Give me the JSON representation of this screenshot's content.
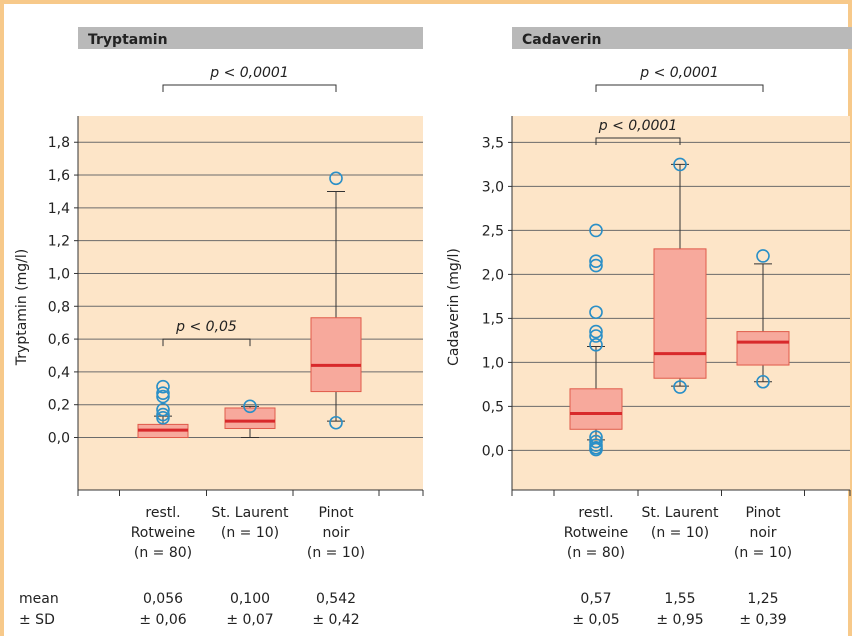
{
  "figure_colors": {
    "frame": "#f7c98a",
    "plot_bg": "#fde5c8",
    "header_bg": "#b9b9b9",
    "box_fill": "#f7a99c",
    "box_stroke": "#e05a4a",
    "median": "#d8292b",
    "outlier": "#2a8fc7"
  },
  "stats_labels": {
    "mean": "mean",
    "sd": "± SD"
  },
  "chart_data": [
    {
      "type": "box",
      "title": "Tryptamin",
      "ylabel": "Tryptamin (mg/l)",
      "ylim": [
        -0.32,
        1.96
      ],
      "yticks": [
        {
          "v": 0.0,
          "label": "0,0"
        },
        {
          "v": 0.2,
          "label": "0,2"
        },
        {
          "v": 0.4,
          "label": "0,4"
        },
        {
          "v": 0.6,
          "label": "0,6"
        },
        {
          "v": 0.8,
          "label": "0,8"
        },
        {
          "v": 1.0,
          "label": "1,0"
        },
        {
          "v": 1.2,
          "label": "1,2"
        },
        {
          "v": 1.4,
          "label": "1,4"
        },
        {
          "v": 1.6,
          "label": "1,6"
        },
        {
          "v": 1.8,
          "label": "1,8"
        }
      ],
      "grid": true,
      "categories": [
        {
          "lines": [
            "restl.",
            "Rotweine",
            "(n = 80)"
          ],
          "mean": "0,056",
          "sd": "± 0,06"
        },
        {
          "lines": [
            "St. Laurent",
            "(n = 10)"
          ],
          "mean": "0,100",
          "sd": "± 0,07"
        },
        {
          "lines": [
            "Pinot",
            "noir",
            "(n = 10)"
          ],
          "mean": "0,542",
          "sd": "± 0,42"
        }
      ],
      "boxes": [
        {
          "q1": 0.0,
          "median": 0.045,
          "q3": 0.08,
          "whisker_low": 0.0,
          "whisker_high": 0.13,
          "outliers": [
            0.31,
            0.27,
            0.25,
            0.17,
            0.14,
            0.12
          ]
        },
        {
          "q1": 0.055,
          "median": 0.1,
          "q3": 0.18,
          "whisker_low": 0.0,
          "whisker_high": 0.19,
          "outliers": [
            0.19
          ]
        },
        {
          "q1": 0.28,
          "median": 0.44,
          "q3": 0.73,
          "whisker_low": 0.1,
          "whisker_high": 1.5,
          "outliers": [
            1.58,
            0.09
          ]
        }
      ],
      "annotations": [
        {
          "from": 0,
          "to": 2,
          "text": "p < 0,0001",
          "y": 2.07,
          "placement": "above-plot"
        },
        {
          "from": 0,
          "to": 1,
          "text": "p < 0,05",
          "y": 0.6
        }
      ]
    },
    {
      "type": "box",
      "title": "Cadaverin",
      "ylabel": "Cadaverin (mg/l)",
      "ylim": [
        -0.45,
        3.8
      ],
      "yticks": [
        {
          "v": 0.0,
          "label": "0,0"
        },
        {
          "v": 0.5,
          "label": "0,5"
        },
        {
          "v": 1.0,
          "label": "1,0"
        },
        {
          "v": 1.5,
          "label": "1,5"
        },
        {
          "v": 2.0,
          "label": "2,0"
        },
        {
          "v": 2.5,
          "label": "2,5"
        },
        {
          "v": 3.0,
          "label": "3,0"
        },
        {
          "v": 3.5,
          "label": "3,5"
        }
      ],
      "grid": true,
      "categories": [
        {
          "lines": [
            "restl.",
            "Rotweine",
            "(n = 80)"
          ],
          "mean": "0,57",
          "sd": "± 0,05"
        },
        {
          "lines": [
            "St. Laurent",
            "(n = 10)"
          ],
          "mean": "1,55",
          "sd": "± 0,95"
        },
        {
          "lines": [
            "Pinot",
            "noir",
            "(n = 10)"
          ],
          "mean": "1,25",
          "sd": "± 0,39"
        }
      ],
      "boxes": [
        {
          "q1": 0.24,
          "median": 0.42,
          "q3": 0.7,
          "whisker_low": 0.12,
          "whisker_high": 1.18,
          "outliers": [
            2.5,
            2.15,
            2.1,
            1.57,
            1.35,
            1.3,
            1.2,
            0.15,
            0.1,
            0.06,
            0.03,
            0.01
          ]
        },
        {
          "q1": 0.82,
          "median": 1.1,
          "q3": 2.29,
          "whisker_low": 0.73,
          "whisker_high": 3.25,
          "outliers": [
            3.25,
            0.72
          ]
        },
        {
          "q1": 0.97,
          "median": 1.23,
          "q3": 1.35,
          "whisker_low": 0.78,
          "whisker_high": 2.12,
          "outliers": [
            2.21,
            0.78
          ]
        }
      ],
      "annotations": [
        {
          "from": 0,
          "to": 2,
          "text": "p < 0,0001",
          "y": 4.0,
          "placement": "above-plot"
        },
        {
          "from": 0,
          "to": 1,
          "text": "p < 0,0001",
          "y": 3.55
        }
      ]
    }
  ]
}
